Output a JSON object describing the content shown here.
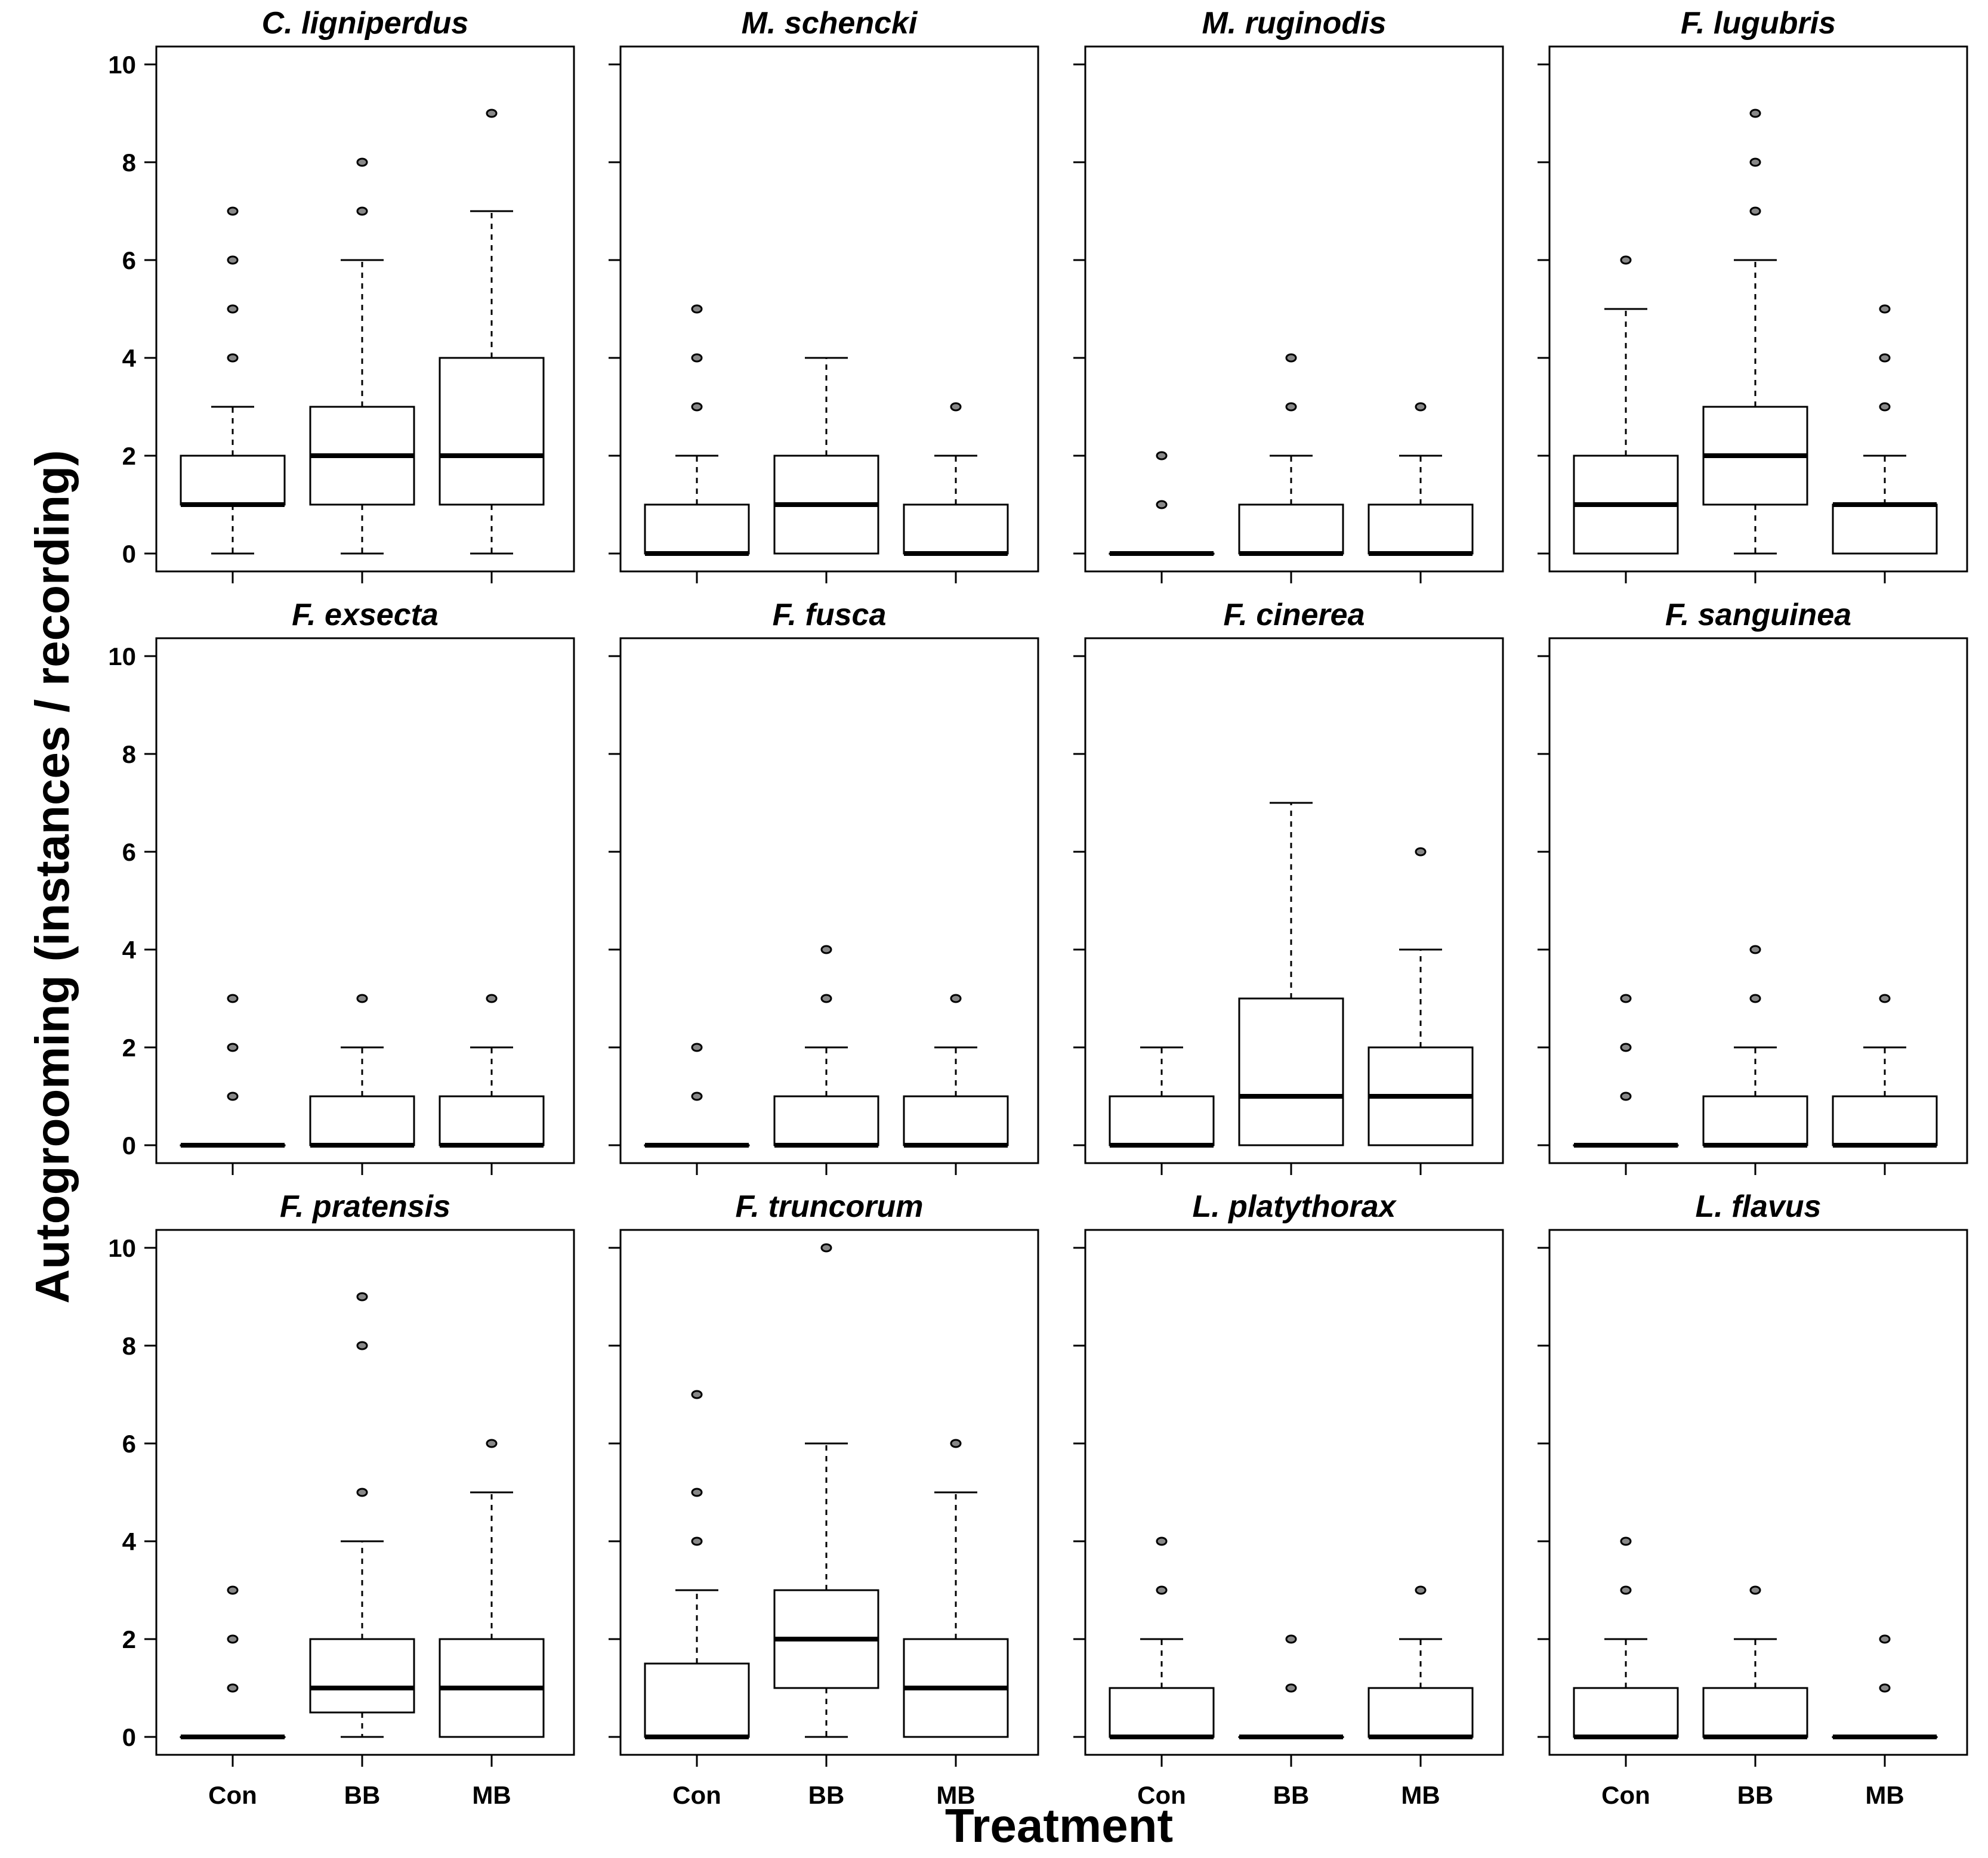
{
  "chart_data": {
    "type": "boxplot",
    "ylabel": "Autogrooming (instances / recording)",
    "xlabel": "Treatment",
    "ylim": [
      0,
      10
    ],
    "yticks": [
      "0",
      "2",
      "4",
      "6",
      "8",
      "10"
    ],
    "categories": [
      "Con",
      "BB",
      "MB"
    ],
    "panels": [
      {
        "title": "C. ligniperdus",
        "boxes": [
          {
            "category": "Con",
            "q1": 1,
            "median": 1,
            "q3": 2,
            "whisker_low": 0,
            "whisker_high": 3,
            "outliers": [
              4,
              5,
              6,
              7
            ]
          },
          {
            "category": "BB",
            "q1": 1,
            "median": 2,
            "q3": 3,
            "whisker_low": 0,
            "whisker_high": 6,
            "outliers": [
              7,
              8
            ]
          },
          {
            "category": "MB",
            "q1": 1,
            "median": 2,
            "q3": 4,
            "whisker_low": 0,
            "whisker_high": 7,
            "outliers": [
              9
            ]
          }
        ]
      },
      {
        "title": "M. schencki",
        "boxes": [
          {
            "category": "Con",
            "q1": 0,
            "median": 0,
            "q3": 1,
            "whisker_low": 0,
            "whisker_high": 2,
            "outliers": [
              3,
              4,
              5
            ]
          },
          {
            "category": "BB",
            "q1": 0,
            "median": 1,
            "q3": 2,
            "whisker_low": 0,
            "whisker_high": 4,
            "outliers": []
          },
          {
            "category": "MB",
            "q1": 0,
            "median": 0,
            "q3": 1,
            "whisker_low": 0,
            "whisker_high": 2,
            "outliers": [
              3
            ]
          }
        ]
      },
      {
        "title": "M. ruginodis",
        "boxes": [
          {
            "category": "Con",
            "q1": 0,
            "median": 0,
            "q3": 0,
            "whisker_low": 0,
            "whisker_high": 0,
            "outliers": [
              1,
              2
            ]
          },
          {
            "category": "BB",
            "q1": 0,
            "median": 0,
            "q3": 1,
            "whisker_low": 0,
            "whisker_high": 2,
            "outliers": [
              3,
              4
            ]
          },
          {
            "category": "MB",
            "q1": 0,
            "median": 0,
            "q3": 1,
            "whisker_low": 0,
            "whisker_high": 2,
            "outliers": [
              3
            ]
          }
        ]
      },
      {
        "title": "F. lugubris",
        "boxes": [
          {
            "category": "Con",
            "q1": 0,
            "median": 1,
            "q3": 2,
            "whisker_low": 0,
            "whisker_high": 5,
            "outliers": [
              6
            ]
          },
          {
            "category": "BB",
            "q1": 1,
            "median": 2,
            "q3": 3,
            "whisker_low": 0,
            "whisker_high": 6,
            "outliers": [
              7,
              8,
              9
            ]
          },
          {
            "category": "MB",
            "q1": 0,
            "median": 1,
            "q3": 1,
            "whisker_low": 0,
            "whisker_high": 2,
            "outliers": [
              3,
              4,
              5
            ]
          }
        ]
      },
      {
        "title": "F. exsecta",
        "boxes": [
          {
            "category": "Con",
            "q1": 0,
            "median": 0,
            "q3": 0,
            "whisker_low": 0,
            "whisker_high": 0,
            "outliers": [
              1,
              2,
              3
            ]
          },
          {
            "category": "BB",
            "q1": 0,
            "median": 0,
            "q3": 1,
            "whisker_low": 0,
            "whisker_high": 2,
            "outliers": [
              3
            ]
          },
          {
            "category": "MB",
            "q1": 0,
            "median": 0,
            "q3": 1,
            "whisker_low": 0,
            "whisker_high": 2,
            "outliers": [
              3
            ]
          }
        ]
      },
      {
        "title": "F. fusca",
        "boxes": [
          {
            "category": "Con",
            "q1": 0,
            "median": 0,
            "q3": 0,
            "whisker_low": 0,
            "whisker_high": 0,
            "outliers": [
              1,
              2
            ]
          },
          {
            "category": "BB",
            "q1": 0,
            "median": 0,
            "q3": 1,
            "whisker_low": 0,
            "whisker_high": 2,
            "outliers": [
              3,
              4
            ]
          },
          {
            "category": "MB",
            "q1": 0,
            "median": 0,
            "q3": 1,
            "whisker_low": 0,
            "whisker_high": 2,
            "outliers": [
              3
            ]
          }
        ]
      },
      {
        "title": "F. cinerea",
        "boxes": [
          {
            "category": "Con",
            "q1": 0,
            "median": 0,
            "q3": 1,
            "whisker_low": 0,
            "whisker_high": 2,
            "outliers": []
          },
          {
            "category": "BB",
            "q1": 0,
            "median": 1,
            "q3": 3,
            "whisker_low": 0,
            "whisker_high": 7,
            "outliers": []
          },
          {
            "category": "MB",
            "q1": 0,
            "median": 1,
            "q3": 2,
            "whisker_low": 0,
            "whisker_high": 4,
            "outliers": [
              6
            ]
          }
        ]
      },
      {
        "title": "F. sanguinea",
        "boxes": [
          {
            "category": "Con",
            "q1": 0,
            "median": 0,
            "q3": 0,
            "whisker_low": 0,
            "whisker_high": 0,
            "outliers": [
              1,
              2,
              3
            ]
          },
          {
            "category": "BB",
            "q1": 0,
            "median": 0,
            "q3": 1,
            "whisker_low": 0,
            "whisker_high": 2,
            "outliers": [
              3,
              4
            ]
          },
          {
            "category": "MB",
            "q1": 0,
            "median": 0,
            "q3": 1,
            "whisker_low": 0,
            "whisker_high": 2,
            "outliers": [
              3
            ]
          }
        ]
      },
      {
        "title": "F. pratensis",
        "boxes": [
          {
            "category": "Con",
            "q1": 0,
            "median": 0,
            "q3": 0,
            "whisker_low": 0,
            "whisker_high": 0,
            "outliers": [
              1,
              2,
              3
            ]
          },
          {
            "category": "BB",
            "q1": 0.5,
            "median": 1,
            "q3": 2,
            "whisker_low": 0,
            "whisker_high": 4,
            "outliers": [
              5,
              8,
              9
            ]
          },
          {
            "category": "MB",
            "q1": 0,
            "median": 1,
            "q3": 2,
            "whisker_low": 0,
            "whisker_high": 5,
            "outliers": [
              6
            ]
          }
        ]
      },
      {
        "title": "F. truncorum",
        "boxes": [
          {
            "category": "Con",
            "q1": 0,
            "median": 0,
            "q3": 1.5,
            "whisker_low": 0,
            "whisker_high": 3,
            "outliers": [
              4,
              5,
              7
            ]
          },
          {
            "category": "BB",
            "q1": 1,
            "median": 2,
            "q3": 3,
            "whisker_low": 0,
            "whisker_high": 6,
            "outliers": [
              10
            ]
          },
          {
            "category": "MB",
            "q1": 0,
            "median": 1,
            "q3": 2,
            "whisker_low": 0,
            "whisker_high": 5,
            "outliers": [
              6
            ]
          }
        ]
      },
      {
        "title": "L. platythorax",
        "boxes": [
          {
            "category": "Con",
            "q1": 0,
            "median": 0,
            "q3": 1,
            "whisker_low": 0,
            "whisker_high": 2,
            "outliers": [
              3,
              4
            ]
          },
          {
            "category": "BB",
            "q1": 0,
            "median": 0,
            "q3": 0,
            "whisker_low": 0,
            "whisker_high": 0,
            "outliers": [
              1,
              2
            ]
          },
          {
            "category": "MB",
            "q1": 0,
            "median": 0,
            "q3": 1,
            "whisker_low": 0,
            "whisker_high": 2,
            "outliers": [
              3
            ]
          }
        ]
      },
      {
        "title": "L. flavus",
        "boxes": [
          {
            "category": "Con",
            "q1": 0,
            "median": 0,
            "q3": 1,
            "whisker_low": 0,
            "whisker_high": 2,
            "outliers": [
              3,
              4
            ]
          },
          {
            "category": "BB",
            "q1": 0,
            "median": 0,
            "q3": 1,
            "whisker_low": 0,
            "whisker_high": 2,
            "outliers": [
              3
            ]
          },
          {
            "category": "MB",
            "q1": 0,
            "median": 0,
            "q3": 0,
            "whisker_low": 0,
            "whisker_high": 0,
            "outliers": [
              1,
              2
            ]
          }
        ]
      }
    ]
  }
}
